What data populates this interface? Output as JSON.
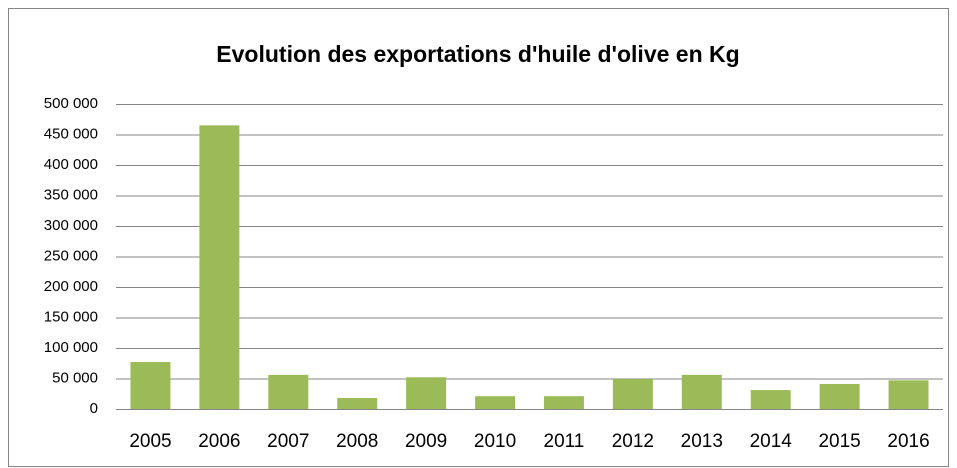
{
  "chart_data": {
    "type": "bar",
    "title": "Evolution des exportations d'huile d'olive en Kg",
    "categories": [
      "2005",
      "2006",
      "2007",
      "2008",
      "2009",
      "2010",
      "2011",
      "2012",
      "2013",
      "2014",
      "2015",
      "2016"
    ],
    "values": [
      77000,
      465000,
      56000,
      18000,
      52000,
      21000,
      21000,
      49000,
      56000,
      31000,
      41000,
      47000
    ],
    "color": "#9bbb59",
    "ylim": [
      0,
      500000
    ],
    "yticks": [
      0,
      {
        "value": 50000,
        "label": "50 000"
      },
      {
        "value": 100000,
        "label": "100 000"
      },
      {
        "value": 150000,
        "label": "150 000"
      },
      {
        "value": 200000,
        "label": "200 000"
      },
      {
        "value": 250000,
        "label": "250 000"
      },
      {
        "value": 300000,
        "label": "300 000"
      },
      {
        "value": 350000,
        "label": "350 000"
      },
      {
        "value": 400000,
        "label": "400 000"
      },
      {
        "value": 450000,
        "label": "450 000"
      },
      {
        "value": 500000,
        "label": "500 000"
      }
    ],
    "grid": true
  }
}
